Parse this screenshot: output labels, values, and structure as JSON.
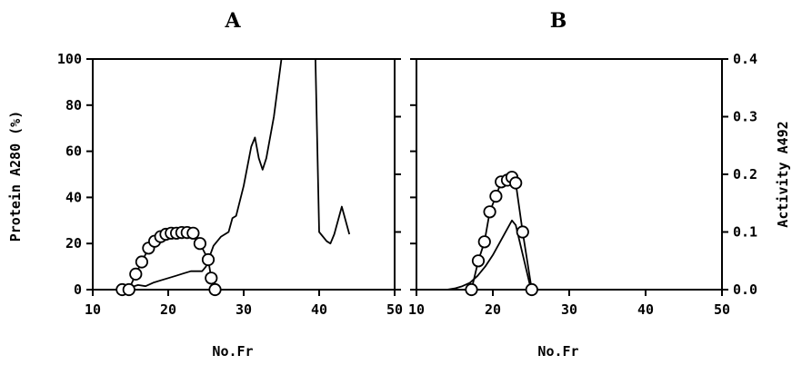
{
  "chart_data": [
    {
      "type": "line",
      "panel": "A",
      "title": "A",
      "xlabel": "No.Fr",
      "ylabel": "Protein A280 (%)",
      "y2label": "",
      "xlim": [
        10,
        50
      ],
      "ylim": [
        0,
        100
      ],
      "y2lim": [
        0,
        0.4
      ],
      "xticks": [
        "10",
        "20",
        "30",
        "40",
        "50"
      ],
      "yticks": [
        "0",
        "20",
        "40",
        "60",
        "80",
        "100"
      ],
      "y2ticks": [],
      "show_left_labels": true,
      "show_right_labels": false,
      "grid": false,
      "series": [
        {
          "axis": "left",
          "marker": "none",
          "x": [
            13.9,
            15,
            16,
            17,
            18,
            19,
            20,
            21,
            22,
            23,
            24,
            24.5,
            25,
            26,
            27,
            28,
            28.5,
            29,
            30,
            31,
            31.5,
            32,
            32.5,
            33,
            34,
            35,
            36,
            37,
            38,
            38.5,
            39,
            39.5,
            40,
            41,
            41.5,
            42,
            43,
            44
          ],
          "y": [
            0,
            1,
            2,
            1.5,
            3,
            4,
            5,
            6,
            7,
            8,
            8,
            8,
            10,
            19,
            23,
            25,
            31,
            32,
            45,
            62,
            66,
            57,
            52,
            57,
            75,
            100,
            100,
            100,
            100,
            100,
            100,
            100,
            25,
            21,
            20,
            24,
            36,
            24
          ]
        },
        {
          "axis": "right",
          "marker": "circle",
          "x": [
            13.9,
            14.8,
            15.7,
            16.5,
            17.4,
            18.2,
            19,
            19.7,
            20.4,
            21.1,
            21.8,
            22.5,
            23.3,
            24.2,
            25.3,
            25.7,
            26.2
          ],
          "y": [
            0,
            0,
            0.027,
            0.048,
            0.072,
            0.084,
            0.092,
            0.096,
            0.098,
            0.098,
            0.099,
            0.099,
            0.098,
            0.08,
            0.052,
            0.02,
            0
          ]
        }
      ]
    },
    {
      "type": "line",
      "panel": "B",
      "title": "B",
      "xlabel": "No.Fr",
      "ylabel": "",
      "y2label": "Activity A492",
      "xlim": [
        10,
        50
      ],
      "ylim": [
        0,
        100
      ],
      "y2lim": [
        0,
        0.4
      ],
      "xticks": [
        "10",
        "20",
        "30",
        "40",
        "50"
      ],
      "yticks": [],
      "y2ticks": [
        "0.0",
        "0.1",
        "0.2",
        "0.3",
        "0.4"
      ],
      "show_left_labels": false,
      "show_right_labels": true,
      "grid": false,
      "series": [
        {
          "axis": "left",
          "marker": "none",
          "x": [
            14,
            15,
            16,
            17,
            18,
            19,
            20,
            21,
            22,
            22.5,
            23,
            24,
            25
          ],
          "y": [
            0,
            0.5,
            1.5,
            3,
            6,
            10,
            15,
            21,
            27,
            30,
            28,
            14,
            0
          ]
        },
        {
          "axis": "right",
          "marker": "circle",
          "x": [
            17.2,
            18.1,
            18.9,
            19.6,
            20.4,
            21.1,
            21.9,
            22.5,
            23,
            23.9,
            25.1
          ],
          "y": [
            0,
            0.05,
            0.083,
            0.135,
            0.162,
            0.187,
            0.19,
            0.195,
            0.185,
            0.1,
            0
          ]
        }
      ]
    }
  ]
}
